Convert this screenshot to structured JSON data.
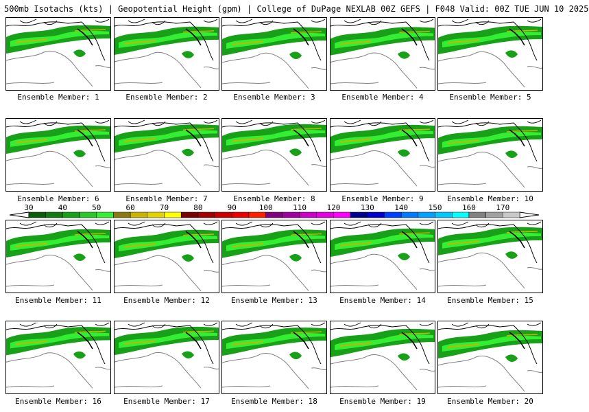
{
  "title": "500mb Isotachs (kts) | Geopotential Height (gpm) | College of DuPage NEXLAB   00Z GEFS | F048 Valid: 00Z TUE JUN 10 2025",
  "members": [
    {
      "label": "Ensemble Member: 1"
    },
    {
      "label": "Ensemble Member: 2"
    },
    {
      "label": "Ensemble Member: 3"
    },
    {
      "label": "Ensemble Member: 4"
    },
    {
      "label": "Ensemble Member: 5"
    },
    {
      "label": "Ensemble Member: 6"
    },
    {
      "label": "Ensemble Member: 7"
    },
    {
      "label": "Ensemble Member: 8"
    },
    {
      "label": "Ensemble Member: 9"
    },
    {
      "label": "Ensemble Member: 10"
    },
    {
      "label": "Ensemble Member: 11"
    },
    {
      "label": "Ensemble Member: 12"
    },
    {
      "label": "Ensemble Member: 13"
    },
    {
      "label": "Ensemble Member: 14"
    },
    {
      "label": "Ensemble Member: 15"
    },
    {
      "label": "Ensemble Member: 16"
    },
    {
      "label": "Ensemble Member: 17"
    },
    {
      "label": "Ensemble Member: 18"
    },
    {
      "label": "Ensemble Member: 19"
    },
    {
      "label": "Ensemble Member: 20"
    }
  ],
  "colorbar": {
    "labels": [
      "30",
      "40",
      "50",
      "60",
      "70",
      "80",
      "90",
      "100",
      "110",
      "120",
      "130",
      "140",
      "150",
      "160",
      "170"
    ],
    "colors": [
      "#0a5c0a",
      "#0f7a0f",
      "#18a018",
      "#27c827",
      "#33ee33",
      "#8a7a10",
      "#c8b400",
      "#e4d200",
      "#ffff00",
      "#7a0000",
      "#a00000",
      "#c80000",
      "#e80000",
      "#ff2000",
      "#800080",
      "#a000a0",
      "#c800c8",
      "#e000e0",
      "#ff00ff",
      "#00008c",
      "#0000c8",
      "#0040ff",
      "#0078ff",
      "#00a0ff",
      "#00c8ff",
      "#00ffff",
      "#808080",
      "#a0a0a0",
      "#c8c8c8"
    ]
  }
}
